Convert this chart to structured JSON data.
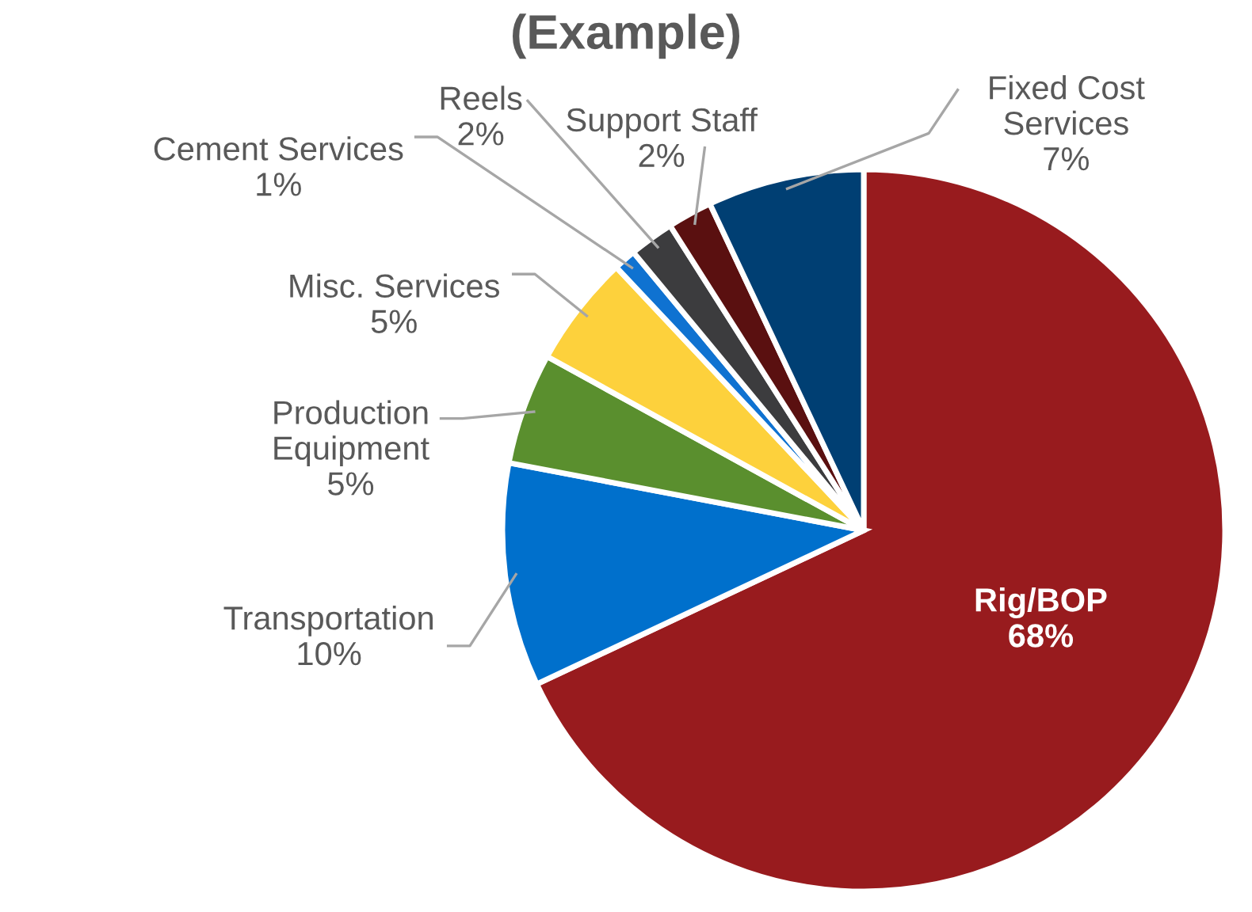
{
  "chart_data": {
    "type": "pie",
    "title": "(Example)",
    "categories": [
      "Rig/BOP",
      "Transportation",
      "Production\nEquipment",
      "Misc. Services",
      "Cement Services",
      "Reels",
      "Support Staff",
      "Fixed Cost\nServices"
    ],
    "values": [
      68,
      10,
      5,
      5,
      1,
      2,
      2,
      7
    ],
    "colors": [
      "#981b1e",
      "#0070cc",
      "#5a8f2e",
      "#fdd13c",
      "#0f72d1",
      "#3c3c3e",
      "#5a1010",
      "#003f73"
    ],
    "value_labels": [
      "68%",
      "10%",
      "5%",
      "5%",
      "1%",
      "2%",
      "2%",
      "7%"
    ],
    "legend": false
  }
}
